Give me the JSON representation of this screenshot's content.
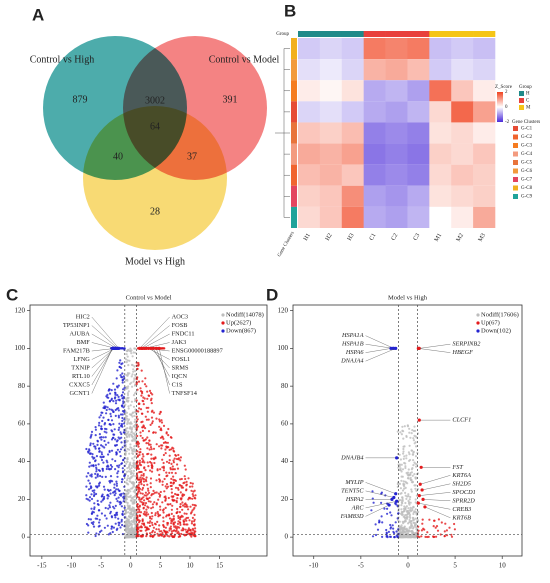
{
  "chart_data": [
    {
      "panel": "A",
      "type": "venn",
      "sets": [
        {
          "name": "Control vs High",
          "color": "#2e9e9c"
        },
        {
          "name": "Control vs Model",
          "color": "#f26d6d"
        },
        {
          "name": "Model vs High",
          "color": "#f7d45c"
        }
      ],
      "regions": [
        {
          "sets": [
            0
          ],
          "value": 879
        },
        {
          "sets": [
            0,
            1
          ],
          "value": 3002
        },
        {
          "sets": [
            1
          ],
          "value": 391
        },
        {
          "sets": [
            0,
            1,
            2
          ],
          "value": 64
        },
        {
          "sets": [
            0,
            2
          ],
          "value": 40
        },
        {
          "sets": [
            1,
            2
          ],
          "value": 37
        },
        {
          "sets": [
            2
          ],
          "value": 28
        }
      ]
    },
    {
      "panel": "B",
      "type": "heatmap",
      "columns": [
        "H1",
        "H2",
        "H3",
        "C1",
        "C2",
        "C3",
        "M1",
        "M2",
        "M3"
      ],
      "group_title": "Group",
      "groups": [
        {
          "name": "H",
          "color": "#1f8a89"
        },
        {
          "name": "C",
          "color": "#e8413c"
        },
        {
          "name": "M",
          "color": "#f5c518"
        }
      ],
      "column_groups": [
        0,
        0,
        0,
        1,
        1,
        1,
        2,
        2,
        2
      ],
      "cluster_title": "Gene Clusters",
      "row_clusters": [
        {
          "name": "G-C1",
          "color": "#e64b35"
        },
        {
          "name": "G-C2",
          "color": "#f0642f"
        },
        {
          "name": "G-C3",
          "color": "#f57c20"
        },
        {
          "name": "G-C4",
          "color": "#f39b7f"
        },
        {
          "name": "G-C5",
          "color": "#e8743b"
        },
        {
          "name": "G-C6",
          "color": "#f29a3c"
        },
        {
          "name": "G-C7",
          "color": "#e3445f"
        },
        {
          "name": "G-C8",
          "color": "#f2b01e"
        },
        {
          "name": "G-C9",
          "color": "#1fa39a"
        }
      ],
      "row_order": [
        7,
        5,
        2,
        0,
        4,
        3,
        1,
        6,
        8
      ],
      "values": [
        [
          -0.4,
          -0.3,
          -0.5,
          -0.8,
          -0.9,
          -0.7,
          0.4,
          1.6,
          1.0
        ],
        [
          0.7,
          0.8,
          0.6,
          -1.2,
          -1.1,
          -1.2,
          0.4,
          0.6,
          0.5
        ],
        [
          0.2,
          0.1,
          0.3,
          -0.8,
          -0.7,
          -0.9,
          1.5,
          0.6,
          0.2
        ],
        [
          0.9,
          0.8,
          1.0,
          -1.3,
          -1.2,
          -1.3,
          0.5,
          0.4,
          0.6
        ],
        [
          0.6,
          0.5,
          0.7,
          -1.2,
          -1.1,
          -1.2,
          0.3,
          0.4,
          0.2
        ],
        [
          -0.3,
          -0.2,
          -0.4,
          0.8,
          0.9,
          0.7,
          -0.5,
          -0.3,
          -0.4
        ],
        [
          0.5,
          0.6,
          1.2,
          -0.9,
          -1.0,
          -0.8,
          0.3,
          0.4,
          0.5
        ],
        [
          -0.5,
          -0.4,
          -0.5,
          1.4,
          1.3,
          1.4,
          -0.6,
          -0.5,
          -0.6
        ],
        [
          0.4,
          0.6,
          1.4,
          -0.8,
          -0.9,
          -0.7,
          0.0,
          0.2,
          0.9
        ]
      ],
      "colorbar": {
        "title": "Z_Score",
        "lim": [
          -2,
          2
        ],
        "ticks": [
          2,
          0,
          -2
        ],
        "colors": [
          "#4b2bd9",
          "#ffffff",
          "#f0421f"
        ]
      },
      "y_label": "Gene Clusters"
    },
    {
      "panel": "C",
      "type": "volcano",
      "title": "Control vs Model",
      "series": [
        {
          "name": "Nodiff(14078)",
          "color": "#bdbdbd"
        },
        {
          "name": "Up(2627)",
          "color": "#e41a1c"
        },
        {
          "name": "Down(867)",
          "color": "#2323d0"
        }
      ],
      "xlim": [
        -17,
        23
      ],
      "ylim": [
        -10,
        123
      ],
      "xticks": [
        -15,
        -10,
        -5,
        0,
        5,
        10,
        15
      ],
      "yticks": [
        0,
        20,
        40,
        60,
        80,
        100,
        120
      ],
      "thresholds": {
        "x": [
          -1,
          1
        ],
        "y": 1.3
      },
      "genes": [
        {
          "name": "HIC2",
          "x": -2.0,
          "y": 100
        },
        {
          "name": "TP53INP1",
          "x": -2.2,
          "y": 100
        },
        {
          "name": "AJUBA",
          "x": -2.4,
          "y": 100
        },
        {
          "name": "BMF",
          "x": -2.5,
          "y": 100
        },
        {
          "name": "FAM217B",
          "x": -2.6,
          "y": 100
        },
        {
          "name": "LFNG",
          "x": -2.7,
          "y": 100
        },
        {
          "name": "TXNIP",
          "x": -2.8,
          "y": 100
        },
        {
          "name": "RTL10",
          "x": -2.9,
          "y": 100
        },
        {
          "name": "CXXC5",
          "x": -3.0,
          "y": 100
        },
        {
          "name": "GCNT1",
          "x": -3.1,
          "y": 100
        },
        {
          "name": "AOC3",
          "x": 1.5,
          "y": 100
        },
        {
          "name": "FOSB",
          "x": 1.8,
          "y": 100
        },
        {
          "name": "FNDC11",
          "x": 2.0,
          "y": 100
        },
        {
          "name": "JAK3",
          "x": 2.3,
          "y": 100
        },
        {
          "name": "ENSG00000188897",
          "x": 2.6,
          "y": 100
        },
        {
          "name": "FOSL1",
          "x": 3.0,
          "y": 100
        },
        {
          "name": "SRMS",
          "x": 3.4,
          "y": 100
        },
        {
          "name": "IQCN",
          "x": 3.8,
          "y": 100
        },
        {
          "name": "C1S",
          "x": 4.3,
          "y": 100
        },
        {
          "name": "TNFSF14",
          "x": 4.8,
          "y": 100
        }
      ]
    },
    {
      "panel": "D",
      "type": "volcano",
      "title": "Model vs High",
      "series": [
        {
          "name": "Nodiff(17606)",
          "color": "#bdbdbd"
        },
        {
          "name": "Up(67)",
          "color": "#e41a1c"
        },
        {
          "name": "Down(102)",
          "color": "#2323d0"
        }
      ],
      "xlim": [
        -12.2,
        12.1
      ],
      "ylim": [
        -10,
        123
      ],
      "xticks": [
        -10,
        -5,
        0,
        5,
        10
      ],
      "yticks": [
        0,
        20,
        40,
        60,
        80,
        100,
        120
      ],
      "thresholds": {
        "x": [
          -1,
          1
        ],
        "y": 1.3
      },
      "genes": [
        {
          "name": "HSPA1A",
          "x": -1.5,
          "y": 100
        },
        {
          "name": "HSPA1B",
          "x": -1.6,
          "y": 100
        },
        {
          "name": "HSPA6",
          "x": -1.8,
          "y": 100
        },
        {
          "name": "DNAJA4",
          "x": -1.3,
          "y": 100
        },
        {
          "name": "DNAJB4",
          "x": -1.2,
          "y": 42
        },
        {
          "name": "MYLIP",
          "x": -1.3,
          "y": 23
        },
        {
          "name": "TENT5C",
          "x": -1.5,
          "y": 21
        },
        {
          "name": "HSPA2",
          "x": -1.7,
          "y": 20
        },
        {
          "name": "ARC",
          "x": -1.2,
          "y": 19
        },
        {
          "name": "FAM83D",
          "x": -2.0,
          "y": 17
        },
        {
          "name": "SERPINB2",
          "x": 1.2,
          "y": 100
        },
        {
          "name": "HBEGF",
          "x": 1.1,
          "y": 100
        },
        {
          "name": "CLCF1",
          "x": 1.2,
          "y": 62
        },
        {
          "name": "FST",
          "x": 1.4,
          "y": 37
        },
        {
          "name": "KRT6A",
          "x": 1.3,
          "y": 28
        },
        {
          "name": "SH2D5",
          "x": 1.5,
          "y": 25
        },
        {
          "name": "SPOCD1",
          "x": 1.2,
          "y": 22
        },
        {
          "name": "SPRR2D",
          "x": 1.6,
          "y": 20
        },
        {
          "name": "CREB3",
          "x": 1.1,
          "y": 18
        },
        {
          "name": "KRT6B",
          "x": 1.8,
          "y": 16
        }
      ]
    }
  ]
}
